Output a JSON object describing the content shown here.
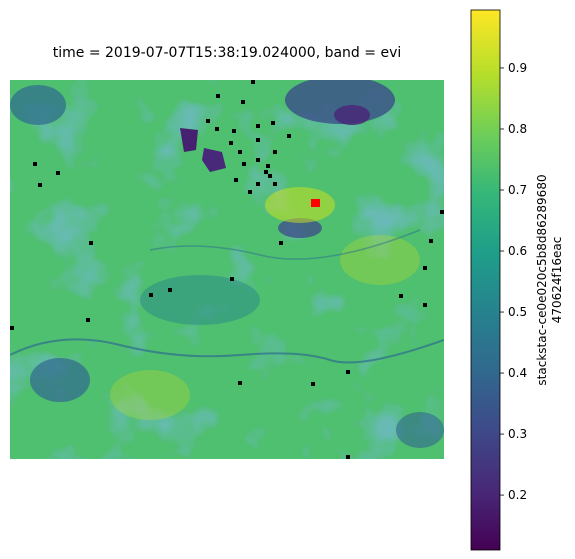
{
  "chart_data": {
    "type": "heatmap",
    "title": "time = 2019-07-07T15:38:19.024000, band = evi",
    "colorbar": {
      "label_line1": "stackstac-ce0e020c5b8d86289680",
      "label_line2": "470624f16eac",
      "colormap": "viridis",
      "range": [
        0.11,
        0.995
      ],
      "ticks": [
        0.2,
        0.3,
        0.4,
        0.5,
        0.6,
        0.7,
        0.8,
        0.9
      ],
      "tick_labels": [
        "0.2",
        "0.3",
        "0.4",
        "0.5",
        "0.6",
        "0.7",
        "0.8",
        "0.9"
      ]
    },
    "axes_visible": false,
    "colors": {
      "nodata": "#000000",
      "highlight": "#ff0000",
      "viridis": [
        "#440154",
        "#482878",
        "#3e4989",
        "#31688e",
        "#26828e",
        "#1f9e89",
        "#35b779",
        "#6ece58",
        "#b5de2b",
        "#fde725"
      ]
    }
  }
}
